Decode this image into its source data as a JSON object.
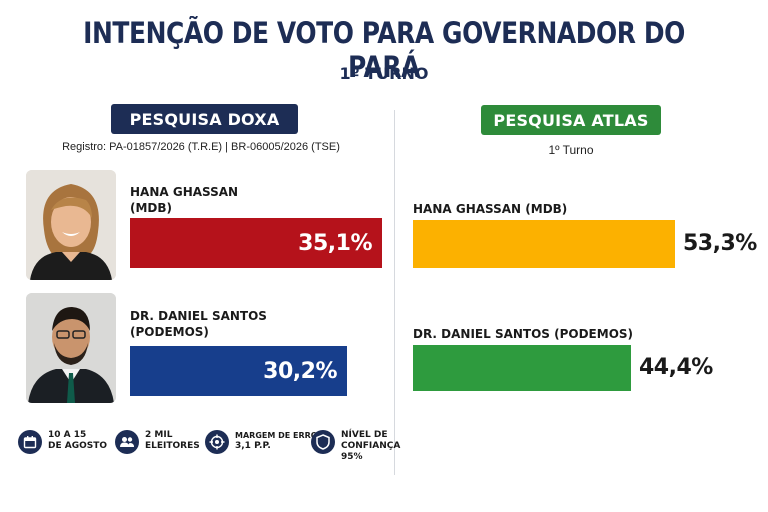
{
  "header": {
    "title": "INTENÇÃO DE VOTO PARA GOVERNADOR DO PARÁ",
    "subtitle": "1º TURNO"
  },
  "doxa": {
    "badge": "PESQUISA DOXA",
    "registro": "Registro: PA-01857/2026 (T.R.E)  |  BR-06005/2026 (TSE)",
    "candidates": [
      {
        "name": "HANA GHASSAN",
        "party": "(MDB)",
        "value_label": "35,1%"
      },
      {
        "name": "DR. DANIEL SANTOS",
        "party": "(PODEMOS)",
        "value_label": "30,2%"
      }
    ],
    "info": [
      {
        "icon": "calendar-icon",
        "line1": "10 A 15",
        "line2": "DE AGOSTO",
        "line3": ""
      },
      {
        "icon": "people-icon",
        "line1": "2 MIL",
        "line2": "ELEITORES",
        "line3": ""
      },
      {
        "icon": "target-icon",
        "line1": "MARGEM DE ERRO",
        "line2": "3,1 P.P.",
        "line3": ""
      },
      {
        "icon": "shield-icon",
        "line1": "NÍVEL DE",
        "line2": "CONFIANÇA",
        "line3": "95%"
      }
    ]
  },
  "atlas": {
    "badge": "PESQUISA ATLAS",
    "turno": "1º Turno",
    "candidates": [
      {
        "label": "HANA GHASSAN (MDB)",
        "value_label": "53,3%"
      },
      {
        "label": "DR. DANIEL SANTOS (PODEMOS)",
        "value_label": "44,4%"
      }
    ]
  },
  "colors": {
    "navy": "#1d2d55",
    "doxa_hana": "#b5121b",
    "doxa_daniel": "#173e8c",
    "atlas_hana": "#fcb100",
    "atlas_daniel": "#2e9b3e",
    "atlas_badge": "#2e8b3a"
  },
  "chart_data": [
    {
      "type": "bar",
      "title": "PESQUISA DOXA",
      "categories": [
        "HANA GHASSAN (MDB)",
        "DR. DANIEL SANTOS (PODEMOS)"
      ],
      "values": [
        35.1,
        30.2
      ]
    },
    {
      "type": "bar",
      "title": "PESQUISA ATLAS",
      "categories": [
        "HANA GHASSAN (MDB)",
        "DR. DANIEL SANTOS (PODEMOS)"
      ],
      "values": [
        53.3,
        44.4
      ]
    }
  ]
}
